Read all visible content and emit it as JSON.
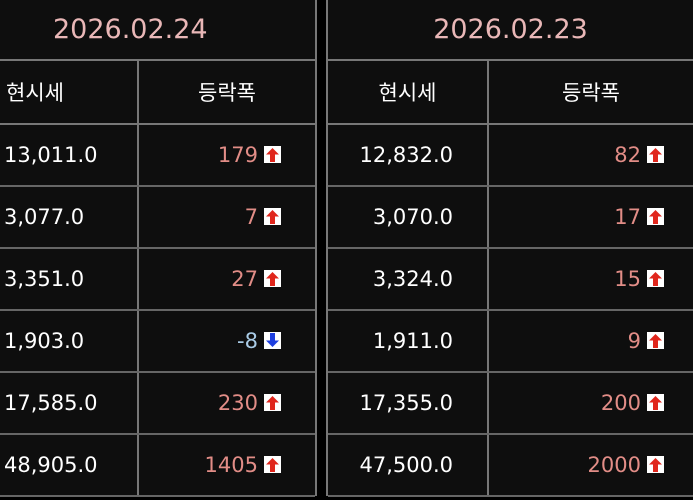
{
  "colors": {
    "up": "#e28d87",
    "down": "#a9cbe6",
    "up_icon": "#e0261c",
    "down_icon": "#1e3fe0",
    "date": "#e9b7b7"
  },
  "panels": [
    {
      "date": "2026.02.24",
      "headers": {
        "price": "현시세",
        "change": "등락폭"
      },
      "rows": [
        {
          "price": "13,011.0",
          "change": "179",
          "dir": "up"
        },
        {
          "price": "3,077.0",
          "change": "7",
          "dir": "up"
        },
        {
          "price": "3,351.0",
          "change": "27",
          "dir": "up"
        },
        {
          "price": "1,903.0",
          "change": "-8",
          "dir": "down"
        },
        {
          "price": "17,585.0",
          "change": "230",
          "dir": "up"
        },
        {
          "price": "48,905.0",
          "change": "1405",
          "dir": "up"
        }
      ]
    },
    {
      "date": "2026.02.23",
      "headers": {
        "price": "현시세",
        "change": "등락폭"
      },
      "rows": [
        {
          "price": "12,832.0",
          "change": "82",
          "dir": "up"
        },
        {
          "price": "3,070.0",
          "change": "17",
          "dir": "up"
        },
        {
          "price": "3,324.0",
          "change": "15",
          "dir": "up"
        },
        {
          "price": "1,911.0",
          "change": "9",
          "dir": "up"
        },
        {
          "price": "17,355.0",
          "change": "200",
          "dir": "up"
        },
        {
          "price": "47,500.0",
          "change": "2000",
          "dir": "up"
        }
      ]
    }
  ]
}
